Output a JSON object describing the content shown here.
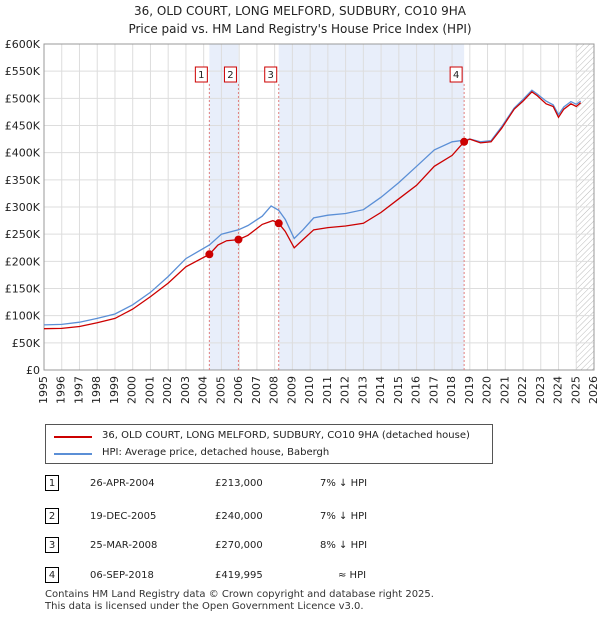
{
  "title_line1": "36, OLD COURT, LONG MELFORD, SUDBURY, CO10 9HA",
  "title_line2": "Price paid vs. HM Land Registry's House Price Index (HPI)",
  "chart_data": {
    "type": "line",
    "ylim": [
      0,
      600000
    ],
    "xlim": [
      1995,
      2026
    ],
    "y_ticks": [
      0,
      50000,
      100000,
      150000,
      200000,
      250000,
      300000,
      350000,
      400000,
      450000,
      500000,
      550000,
      600000
    ],
    "y_tick_labels": [
      "£0",
      "£50K",
      "£100K",
      "£150K",
      "£200K",
      "£250K",
      "£300K",
      "£350K",
      "£400K",
      "£450K",
      "£500K",
      "£550K",
      "£600K"
    ],
    "x_ticks": [
      1995,
      1996,
      1997,
      1998,
      1999,
      2000,
      2001,
      2002,
      2003,
      2004,
      2005,
      2006,
      2007,
      2008,
      2009,
      2010,
      2011,
      2012,
      2013,
      2014,
      2015,
      2016,
      2017,
      2018,
      2019,
      2020,
      2021,
      2022,
      2023,
      2024,
      2025,
      2026
    ],
    "x_tick_labels": [
      "1995",
      "1996",
      "1997",
      "1998",
      "1999",
      "2000",
      "2001",
      "2002",
      "2003",
      "2004",
      "2005",
      "2006",
      "2007",
      "2008",
      "2009",
      "2010",
      "2011",
      "2012",
      "2013",
      "2014",
      "2015",
      "2016",
      "2017",
      "2018",
      "2019",
      "2020",
      "2021",
      "2022",
      "2023",
      "2024",
      "2025",
      "2026"
    ],
    "shaded_periods": [
      [
        2004.32,
        2005.96
      ],
      [
        2008.23,
        2018.68
      ]
    ],
    "hatched_from": 2025.0,
    "series": [
      {
        "name": "36, OLD COURT, LONG MELFORD, SUDBURY, CO10 9HA (detached house)",
        "color": "#cc0000",
        "points": [
          [
            1995.0,
            76000
          ],
          [
            1996.0,
            76500
          ],
          [
            1997.0,
            80000
          ],
          [
            1998.0,
            87000
          ],
          [
            1999.0,
            95000
          ],
          [
            2000.0,
            112000
          ],
          [
            2001.0,
            135000
          ],
          [
            2002.0,
            160000
          ],
          [
            2003.0,
            190000
          ],
          [
            2004.32,
            213000
          ],
          [
            2004.8,
            230000
          ],
          [
            2005.3,
            238000
          ],
          [
            2005.96,
            240000
          ],
          [
            2006.5,
            248000
          ],
          [
            2007.3,
            268000
          ],
          [
            2007.9,
            275000
          ],
          [
            2008.23,
            270000
          ],
          [
            2008.6,
            255000
          ],
          [
            2009.1,
            225000
          ],
          [
            2009.6,
            240000
          ],
          [
            2010.2,
            258000
          ],
          [
            2011.0,
            262000
          ],
          [
            2012.0,
            265000
          ],
          [
            2013.0,
            270000
          ],
          [
            2014.0,
            290000
          ],
          [
            2015.0,
            315000
          ],
          [
            2016.0,
            340000
          ],
          [
            2017.0,
            375000
          ],
          [
            2018.0,
            395000
          ],
          [
            2018.68,
            419995
          ],
          [
            2019.0,
            425000
          ],
          [
            2019.6,
            418000
          ],
          [
            2020.2,
            420000
          ],
          [
            2020.8,
            445000
          ],
          [
            2021.5,
            480000
          ],
          [
            2022.0,
            495000
          ],
          [
            2022.5,
            512000
          ],
          [
            2022.8,
            505000
          ],
          [
            2023.3,
            490000
          ],
          [
            2023.7,
            485000
          ],
          [
            2024.0,
            465000
          ],
          [
            2024.3,
            480000
          ],
          [
            2024.7,
            490000
          ],
          [
            2025.0,
            485000
          ],
          [
            2025.25,
            492000
          ]
        ]
      },
      {
        "name": "HPI: Average price, detached house, Babergh",
        "color": "#5b8fd6",
        "points": [
          [
            1995.0,
            83000
          ],
          [
            1996.0,
            84000
          ],
          [
            1997.0,
            88000
          ],
          [
            1998.0,
            95000
          ],
          [
            1999.0,
            103000
          ],
          [
            2000.0,
            120000
          ],
          [
            2001.0,
            143000
          ],
          [
            2002.0,
            172000
          ],
          [
            2003.0,
            205000
          ],
          [
            2004.32,
            230000
          ],
          [
            2005.0,
            250000
          ],
          [
            2005.96,
            258000
          ],
          [
            2006.5,
            266000
          ],
          [
            2007.3,
            283000
          ],
          [
            2007.8,
            302000
          ],
          [
            2008.23,
            294000
          ],
          [
            2008.6,
            277000
          ],
          [
            2009.1,
            242000
          ],
          [
            2009.6,
            258000
          ],
          [
            2010.2,
            280000
          ],
          [
            2011.0,
            285000
          ],
          [
            2012.0,
            288000
          ],
          [
            2013.0,
            295000
          ],
          [
            2014.0,
            318000
          ],
          [
            2015.0,
            345000
          ],
          [
            2016.0,
            375000
          ],
          [
            2017.0,
            405000
          ],
          [
            2018.0,
            420000
          ],
          [
            2018.68,
            423000
          ],
          [
            2019.0,
            425000
          ],
          [
            2019.6,
            420000
          ],
          [
            2020.2,
            422000
          ],
          [
            2020.8,
            448000
          ],
          [
            2021.5,
            482000
          ],
          [
            2022.0,
            498000
          ],
          [
            2022.5,
            515000
          ],
          [
            2022.8,
            508000
          ],
          [
            2023.3,
            495000
          ],
          [
            2023.7,
            488000
          ],
          [
            2024.0,
            470000
          ],
          [
            2024.3,
            484000
          ],
          [
            2024.7,
            494000
          ],
          [
            2025.0,
            489000
          ],
          [
            2025.25,
            495000
          ]
        ]
      }
    ],
    "markers": [
      {
        "label": "1",
        "x": 2004.32,
        "y": 213000
      },
      {
        "label": "2",
        "x": 2005.96,
        "y": 240000
      },
      {
        "label": "3",
        "x": 2008.23,
        "y": 270000
      },
      {
        "label": "4",
        "x": 2018.68,
        "y": 419995
      }
    ]
  },
  "legend": {
    "items": [
      {
        "label": "36, OLD COURT, LONG MELFORD, SUDBURY, CO10 9HA (detached house)",
        "color": "#cc0000"
      },
      {
        "label": "HPI: Average price, detached house, Babergh",
        "color": "#5b8fd6"
      }
    ]
  },
  "transactions": [
    {
      "num": "1",
      "date": "26-APR-2004",
      "price": "£213,000",
      "hpi": "7% ↓ HPI"
    },
    {
      "num": "2",
      "date": "19-DEC-2005",
      "price": "£240,000",
      "hpi": "7% ↓ HPI"
    },
    {
      "num": "3",
      "date": "25-MAR-2008",
      "price": "£270,000",
      "hpi": "8% ↓ HPI"
    },
    {
      "num": "4",
      "date": "06-SEP-2018",
      "price": "£419,995",
      "hpi": "≈ HPI"
    }
  ],
  "footer": {
    "line1": "Contains HM Land Registry data © Crown copyright and database right 2025.",
    "line2": "This data is licensed under the Open Government Licence v3.0."
  }
}
